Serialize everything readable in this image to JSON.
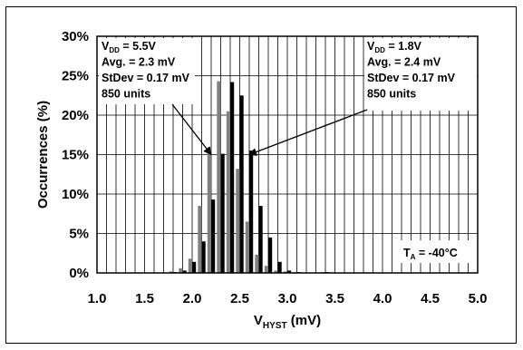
{
  "chart_data": {
    "type": "bar",
    "title": "",
    "xlabel_main": "V",
    "xlabel_sub": "HYST",
    "xlabel_unit": " (mV)",
    "ylabel": "Occurrences (%)",
    "xlim": [
      1.0,
      5.0
    ],
    "ylim": [
      0,
      30
    ],
    "x_ticks": [
      "1.0",
      "1.5",
      "2.0",
      "2.5",
      "3.0",
      "3.5",
      "4.0",
      "4.5",
      "5.0"
    ],
    "y_ticks": [
      "0%",
      "5%",
      "10%",
      "15%",
      "20%",
      "25%",
      "30%"
    ],
    "grid": true,
    "series": [
      {
        "color": "#808080",
        "x": [
          1.8,
          1.9,
          2.0,
          2.1,
          2.2,
          2.3,
          2.4,
          2.5,
          2.6,
          2.7,
          2.8,
          2.9,
          3.0,
          3.1,
          3.2,
          3.3,
          3.4
        ],
        "values": [
          0.2,
          0.6,
          1.8,
          8.5,
          15.8,
          24.3,
          20.5,
          13.2,
          6.5,
          2.3,
          0.9,
          0.3,
          0.2,
          0.1,
          0,
          0,
          0.1
        ]
      },
      {
        "color": "#000000",
        "x": [
          1.8,
          1.9,
          2.0,
          2.1,
          2.2,
          2.3,
          2.4,
          2.5,
          2.6,
          2.7,
          2.8,
          2.9,
          3.0,
          3.1,
          3.2,
          3.3,
          3.4
        ],
        "values": [
          0.1,
          0.3,
          1.4,
          4.0,
          9.3,
          15.1,
          24.2,
          22.5,
          15.5,
          8.5,
          4.5,
          1.4,
          0.3,
          0.1,
          0,
          0,
          0.1
        ]
      }
    ],
    "annotations": [
      {
        "lines": [
          {
            "main": "V",
            "sub": "DD",
            "rest": " = 5.5V"
          },
          {
            "main": "Avg. = 2.3 mV"
          },
          {
            "main": "StDev = 0.17 mV"
          },
          {
            "main": "850 units"
          }
        ],
        "arrow_to": {
          "x": 2.2,
          "y": 15
        }
      },
      {
        "lines": [
          {
            "main": "V",
            "sub": "DD",
            "rest": " = 1.8V"
          },
          {
            "main": "Avg. = 2.4 mV"
          },
          {
            "main": "StDev = 0.17 mV"
          },
          {
            "main": "850 units"
          }
        ],
        "arrow_to": {
          "x": 2.6,
          "y": 15
        }
      }
    ],
    "condition": {
      "main": "T",
      "sub": "A",
      "rest": " = -40°C"
    }
  }
}
